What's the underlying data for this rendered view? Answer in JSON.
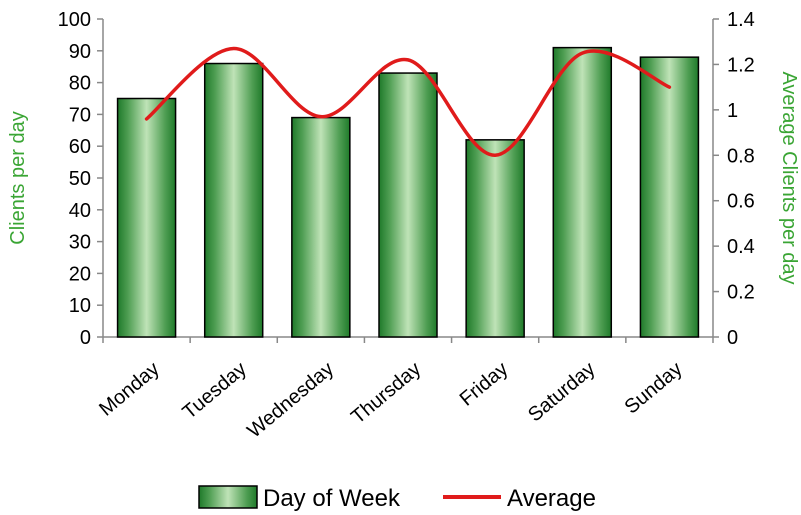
{
  "chart_data": {
    "type": "bar",
    "categories": [
      "Monday",
      "Tuesday",
      "Wednesday",
      "Thursday",
      "Friday",
      "Saturday",
      "Sunday"
    ],
    "series": [
      {
        "name": "Day of Week",
        "type": "bar",
        "axis": "left",
        "values": [
          75,
          86,
          69,
          83,
          62,
          91,
          88
        ]
      },
      {
        "name": "Average",
        "type": "line",
        "axis": "right",
        "smooth": true,
        "values": [
          0.96,
          1.27,
          0.97,
          1.22,
          0.8,
          1.25,
          1.1
        ]
      }
    ],
    "ylabel": "Clients per day",
    "y2label": "Average Clients per day",
    "ylim": [
      0,
      100
    ],
    "y2lim": [
      0,
      1.4
    ],
    "yticks": [
      "0",
      "10",
      "20",
      "30",
      "40",
      "50",
      "60",
      "70",
      "80",
      "90",
      "100"
    ],
    "y2ticks": [
      "0",
      "0.2",
      "0.4",
      "0.6",
      "0.8",
      "1",
      "1.2",
      "1.4"
    ],
    "grid": false,
    "legend_position": "bottom",
    "colors": {
      "bar_light": "#b9dfb2",
      "bar_dark": "#1f7a2a",
      "line": "#e01b1b",
      "axis_title": "#3aa534"
    }
  }
}
